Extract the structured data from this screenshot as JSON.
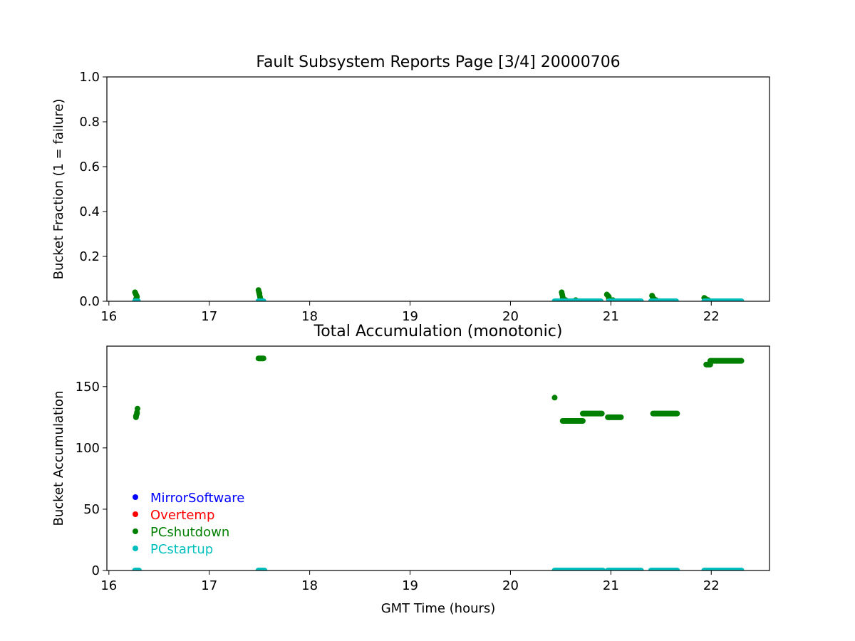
{
  "chart_data": [
    {
      "type": "scatter",
      "title": "Fault Subsystem Reports Page [3/4] 20000706",
      "xlabel": "",
      "ylabel": "Bucket Fraction (1 = failure)",
      "xlim": [
        15.98,
        22.58
      ],
      "ylim": [
        0,
        1.0
      ],
      "xticks": [
        16,
        17,
        18,
        19,
        20,
        21,
        22
      ],
      "yticks": [
        0.0,
        0.2,
        0.4,
        0.6,
        0.8,
        1.0
      ],
      "ytick_labels": [
        "0.0",
        "0.2",
        "0.4",
        "0.6",
        "0.8",
        "1.0"
      ],
      "grid": false,
      "series": [
        {
          "name": "PCshutdown",
          "color": "#008000",
          "points": [
            [
              16.26,
              0.04
            ],
            [
              16.265,
              0.035
            ],
            [
              16.27,
              0.03
            ],
            [
              16.275,
              0.025
            ],
            [
              16.28,
              0.02
            ],
            [
              16.27,
              0.01
            ],
            [
              16.28,
              0.005
            ],
            [
              16.265,
              0.0
            ],
            [
              17.49,
              0.05
            ],
            [
              17.495,
              0.04
            ],
            [
              17.5,
              0.035
            ],
            [
              17.5,
              0.03
            ],
            [
              17.505,
              0.02
            ],
            [
              17.51,
              0.01
            ],
            [
              17.51,
              0.005
            ],
            [
              17.5,
              0.0
            ],
            [
              20.51,
              0.04
            ],
            [
              20.515,
              0.03
            ],
            [
              20.52,
              0.02
            ],
            [
              20.52,
              0.01
            ],
            [
              20.55,
              0.005
            ],
            [
              20.6,
              0.0
            ],
            [
              20.65,
              0.005
            ],
            [
              20.7,
              0.0
            ],
            [
              20.8,
              0.0
            ],
            [
              20.96,
              0.03
            ],
            [
              20.97,
              0.025
            ],
            [
              20.98,
              0.02
            ],
            [
              20.98,
              0.01
            ],
            [
              21.02,
              0.005
            ],
            [
              21.1,
              0.0
            ],
            [
              21.41,
              0.025
            ],
            [
              21.415,
              0.02
            ],
            [
              21.42,
              0.015
            ],
            [
              21.43,
              0.01
            ],
            [
              21.45,
              0.005
            ],
            [
              21.5,
              0.0
            ],
            [
              21.6,
              0.0
            ],
            [
              21.93,
              0.015
            ],
            [
              21.94,
              0.012
            ],
            [
              21.95,
              0.008
            ],
            [
              21.97,
              0.005
            ],
            [
              22.05,
              0.0
            ],
            [
              22.2,
              0.0
            ]
          ]
        },
        {
          "name": "PCstartup",
          "color": "#00BFBF",
          "segments": [
            [
              16.26,
              16.29,
              0.0
            ],
            [
              17.49,
              17.54,
              0.0
            ],
            [
              20.44,
              20.9,
              0.0
            ],
            [
              20.98,
              21.3,
              0.0
            ],
            [
              21.4,
              21.65,
              0.0
            ],
            [
              21.93,
              22.3,
              0.0
            ]
          ]
        }
      ]
    },
    {
      "type": "scatter",
      "title": "Total Accumulation (monotonic)",
      "xlabel": "GMT Time (hours)",
      "ylabel": "Bucket Accumulation",
      "xlim": [
        15.98,
        22.58
      ],
      "ylim": [
        0,
        183
      ],
      "xticks": [
        16,
        17,
        18,
        19,
        20,
        21,
        22
      ],
      "yticks": [
        0,
        50,
        100,
        150
      ],
      "ytick_labels": [
        "0",
        "50",
        "100",
        "150"
      ],
      "grid": false,
      "legend": {
        "placement": "lower-left",
        "entries": [
          {
            "label": "MirrorSoftware",
            "color": "#0000FF"
          },
          {
            "label": "Overtemp",
            "color": "#FF0000"
          },
          {
            "label": "PCshutdown",
            "color": "#008000"
          },
          {
            "label": "PCstartup",
            "color": "#00BFBF"
          }
        ]
      },
      "series": [
        {
          "name": "PCshutdown",
          "color": "#008000",
          "points": [
            [
              16.27,
              125
            ],
            [
              16.275,
              127
            ],
            [
              16.28,
              129
            ],
            [
              16.285,
              132
            ],
            [
              16.27,
              126
            ],
            [
              16.28,
              128
            ],
            [
              20.44,
              141
            ]
          ],
          "segments": [
            [
              17.49,
              17.54,
              173
            ],
            [
              20.52,
              20.72,
              122
            ],
            [
              20.72,
              20.91,
              128
            ],
            [
              20.97,
              21.1,
              125
            ],
            [
              21.42,
              21.66,
              128
            ],
            [
              21.95,
              21.99,
              168
            ],
            [
              21.99,
              22.3,
              171
            ]
          ]
        },
        {
          "name": "PCstartup",
          "color": "#00BFBF",
          "segments": [
            [
              16.26,
              16.3,
              0
            ],
            [
              17.49,
              17.55,
              0
            ],
            [
              20.44,
              20.92,
              0
            ],
            [
              20.97,
              21.3,
              0
            ],
            [
              21.4,
              21.66,
              0
            ],
            [
              21.93,
              22.3,
              0
            ]
          ]
        }
      ]
    }
  ]
}
